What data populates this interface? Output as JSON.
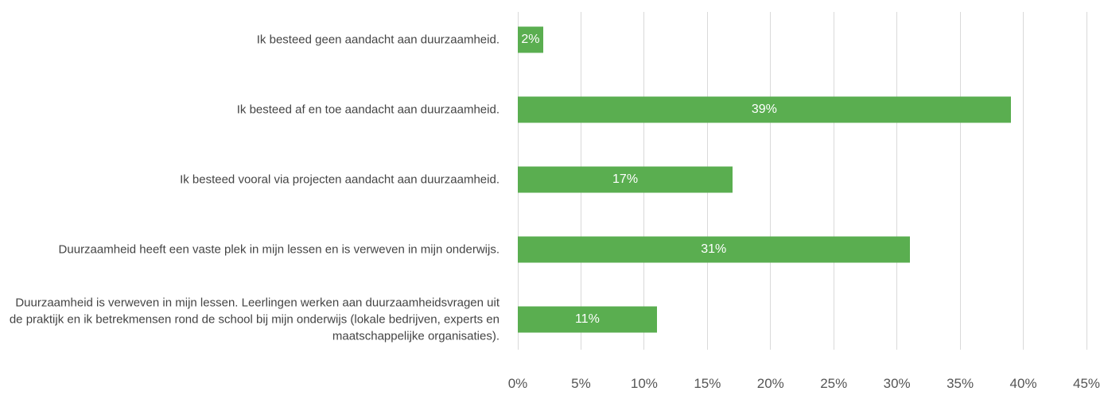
{
  "chart_data": {
    "type": "bar",
    "orientation": "horizontal",
    "categories": [
      "Ik besteed geen aandacht aan duurzaamheid.",
      "Ik besteed af en toe aandacht aan duurzaamheid.",
      "Ik besteed vooral via projecten aandacht aan duurzaamheid.",
      "Duurzaamheid heeft een vaste plek in mijn lessen en is verweven in mijn onderwijs.",
      "Duurzaamheid is verweven in mijn lessen. Leerlingen werken aan duurzaamheidsvragen uit de praktijk en ik betrekmensen rond de school bij mijn onderwijs (lokale bedrijven, experts en maatschappelijke organisaties)."
    ],
    "values": [
      2,
      39,
      17,
      31,
      11
    ],
    "value_labels": [
      "2%",
      "39%",
      "17%",
      "31%",
      "11%"
    ],
    "color": "#5aae50",
    "xlim": [
      0,
      45
    ],
    "xticks": [
      {
        "value": 0,
        "label": "0%"
      },
      {
        "value": 5,
        "label": "5%"
      },
      {
        "value": 10,
        "label": "10%"
      },
      {
        "value": 15,
        "label": "15%"
      },
      {
        "value": 20,
        "label": "20%"
      },
      {
        "value": 25,
        "label": "25%"
      },
      {
        "value": 30,
        "label": "30%"
      },
      {
        "value": 35,
        "label": "35%"
      },
      {
        "value": 40,
        "label": "40%"
      },
      {
        "value": 45,
        "label": "45%"
      }
    ],
    "grid": true
  }
}
